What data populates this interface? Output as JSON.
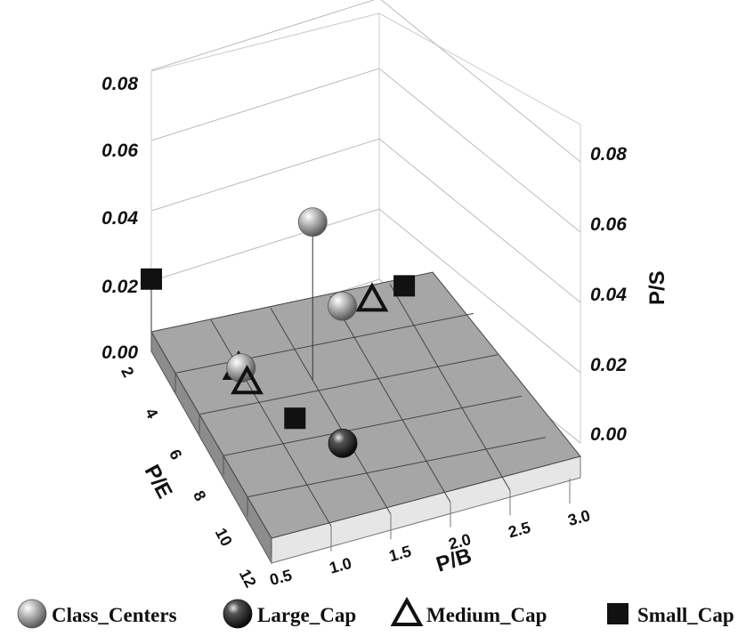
{
  "chart_data": {
    "type": "scatter",
    "projection": "3d",
    "xlabel": "P/B",
    "ylabel": "P/E",
    "zlabel": "P/S",
    "xlim": [
      0.5,
      3.0
    ],
    "ylim": [
      2,
      12
    ],
    "zlim": [
      0.0,
      0.08
    ],
    "x_ticks": [
      "0.5",
      "1.0",
      "1.5",
      "2.0",
      "2.5",
      "3.0"
    ],
    "y_ticks": [
      "2",
      "4",
      "6",
      "8",
      "10",
      "12"
    ],
    "z_ticks": [
      "0.00",
      "0.02",
      "0.04",
      "0.06",
      "0.08"
    ],
    "grid": true,
    "legend_position": "bottom",
    "series": [
      {
        "name": "Class_Centers",
        "marker": "sphere-light",
        "points": [
          {
            "x": 1.5,
            "y": 5.5,
            "z": 0.045
          },
          {
            "x": 2.0,
            "y": 3.0,
            "z": 0.003
          },
          {
            "x": 1.0,
            "y": 4.5,
            "z": 0.001
          }
        ]
      },
      {
        "name": "Large_Cap",
        "marker": "sphere-dark",
        "points": [
          {
            "x": 1.45,
            "y": 8.5,
            "z": 0.0
          }
        ]
      },
      {
        "name": "Medium_Cap",
        "marker": "triangle-open",
        "points": [
          {
            "x": 2.3,
            "y": 2.5,
            "z": 0.0
          },
          {
            "x": 1.0,
            "y": 5.0,
            "z": 0.0
          },
          {
            "x": 1.0,
            "y": 4.3,
            "z": 0.0
          }
        ]
      },
      {
        "name": "Small_Cap",
        "marker": "square-filled",
        "points": [
          {
            "x": 2.6,
            "y": 2.2,
            "z": 0.0
          },
          {
            "x": 0.5,
            "y": 2.0,
            "z": 0.015
          },
          {
            "x": 1.2,
            "y": 7.0,
            "z": 0.0
          }
        ]
      }
    ]
  }
}
